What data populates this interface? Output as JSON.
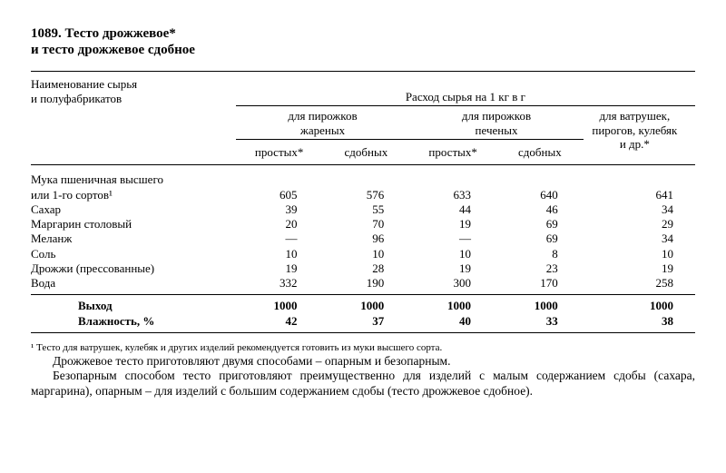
{
  "title_line1": "1089. Тесто дрожжевое*",
  "title_line2": "и тесто дрожжевое сдобное",
  "header": {
    "main": "Расход сырья на 1 кг в г",
    "name_col_line1": "Наименование сырья",
    "name_col_line2": "и полуфабрикатов",
    "group1_line1": "для пирожков",
    "group1_line2": "жареных",
    "group2_line1": "для пирожков",
    "group2_line2": "печеных",
    "group3_line1": "для ватрушек,",
    "group3_line2": "пирогов, кулебяк",
    "group3_line3": "и др.*",
    "sub1": "простых*",
    "sub2": "сдобных",
    "sub3": "простых*",
    "sub4": "сдобных"
  },
  "rows": [
    {
      "name": "Мука пшеничная высшего",
      "v": [
        "",
        "",
        "",
        "",
        ""
      ]
    },
    {
      "name": "или 1-го сортов¹",
      "v": [
        "605",
        "576",
        "633",
        "640",
        "641"
      ]
    },
    {
      "name": "Сахар",
      "v": [
        "39",
        "55",
        "44",
        "46",
        "34"
      ]
    },
    {
      "name": "Маргарин столовый",
      "v": [
        "20",
        "70",
        "19",
        "69",
        "29"
      ]
    },
    {
      "name": "Меланж",
      "v": [
        "—",
        "96",
        "—",
        "69",
        "34"
      ]
    },
    {
      "name": "Соль",
      "v": [
        "10",
        "10",
        "10",
        "8",
        "10"
      ]
    },
    {
      "name": "Дрожжи (прессованные)",
      "v": [
        "19",
        "28",
        "19",
        "23",
        "19"
      ]
    },
    {
      "name": "Вода",
      "v": [
        "332",
        "190",
        "300",
        "170",
        "258"
      ]
    }
  ],
  "summary": [
    {
      "name": "Выход",
      "v": [
        "1000",
        "1000",
        "1000",
        "1000",
        "1000"
      ]
    },
    {
      "name": "Влажность, %",
      "v": [
        "42",
        "37",
        "40",
        "33",
        "38"
      ]
    }
  ],
  "footnote": "¹ Тесто для ватрушек, кулебяк и других изделий рекомендуется готовить из муки высшего сорта.",
  "para1": "Дрожжевое тесто приготовляют двумя способами – опарным и безопарным.",
  "para2": "Безопарным способом тесто приготовляют преимущественно для изделий с малым содержанием сдобы (сахара, маргарина), опарным – для изделий с большим содержанием сдобы (тесто дрожжевое сдобное)."
}
